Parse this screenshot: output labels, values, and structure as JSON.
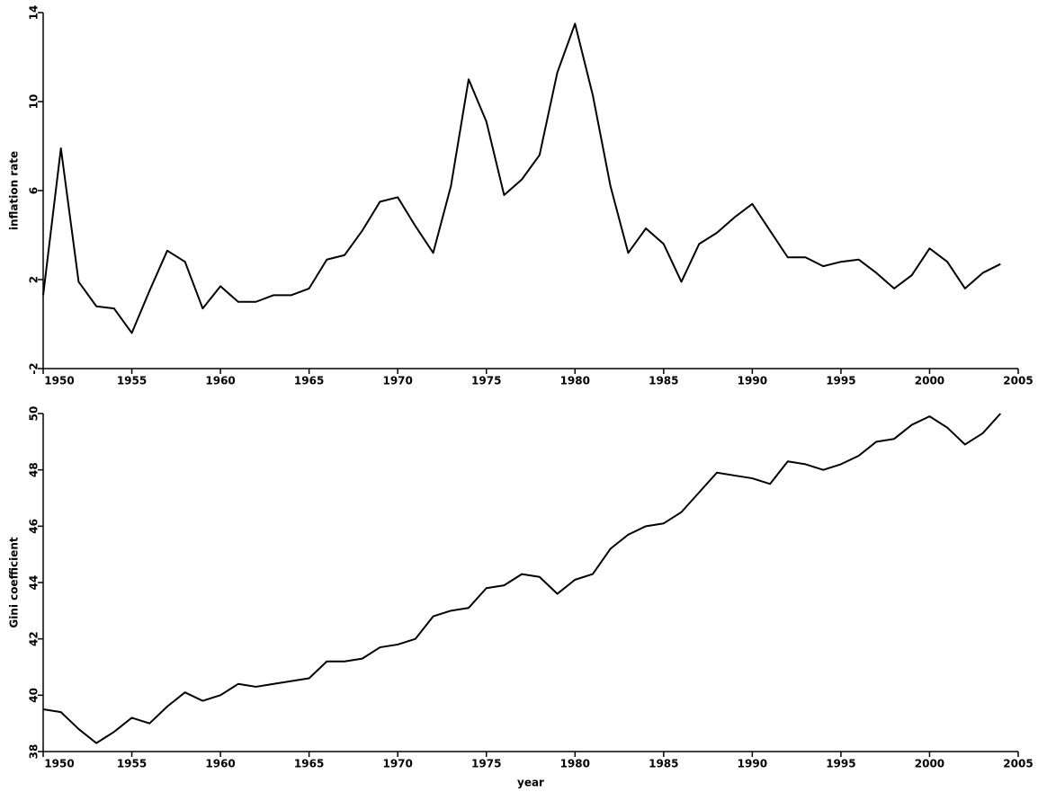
{
  "chart_data": [
    {
      "type": "line",
      "ylabel": "inflation rate",
      "x": [
        1950,
        1951,
        1952,
        1953,
        1954,
        1955,
        1956,
        1957,
        1958,
        1959,
        1960,
        1961,
        1962,
        1963,
        1964,
        1965,
        1966,
        1967,
        1968,
        1969,
        1970,
        1971,
        1972,
        1973,
        1974,
        1975,
        1976,
        1977,
        1978,
        1979,
        1980,
        1981,
        1982,
        1983,
        1984,
        1985,
        1986,
        1987,
        1988,
        1989,
        1990,
        1991,
        1992,
        1993,
        1994,
        1995,
        1996,
        1997,
        1998,
        1999,
        2000,
        2001,
        2002,
        2003,
        2004
      ],
      "series": [
        {
          "color": "#000000",
          "values": [
            1.3,
            7.9,
            1.9,
            0.8,
            0.7,
            -0.4,
            1.5,
            3.3,
            2.8,
            0.7,
            1.7,
            1.0,
            1.0,
            1.3,
            1.3,
            1.6,
            2.9,
            3.1,
            4.2,
            5.5,
            5.7,
            4.4,
            3.2,
            6.2,
            11.0,
            9.1,
            5.8,
            6.5,
            7.6,
            11.3,
            13.5,
            10.3,
            6.2,
            3.2,
            4.3,
            3.6,
            1.9,
            3.6,
            4.1,
            4.8,
            5.4,
            4.2,
            3.0,
            3.0,
            2.6,
            2.8,
            2.9,
            2.3,
            1.6,
            2.2,
            3.4,
            2.8,
            1.6,
            2.3,
            2.7
          ]
        }
      ],
      "xlim": [
        1950,
        2005
      ],
      "xticks": [
        1950,
        1955,
        1960,
        1965,
        1970,
        1975,
        1980,
        1985,
        1990,
        1995,
        2000,
        2005
      ],
      "ylim": [
        -2,
        14
      ],
      "yticks": [
        -2,
        2,
        6,
        10,
        14
      ]
    },
    {
      "type": "line",
      "ylabel": "Gini coefficient",
      "xlabel": "year",
      "x": [
        1950,
        1951,
        1952,
        1953,
        1954,
        1955,
        1956,
        1957,
        1958,
        1959,
        1960,
        1961,
        1962,
        1963,
        1964,
        1965,
        1966,
        1967,
        1968,
        1969,
        1970,
        1971,
        1972,
        1973,
        1974,
        1975,
        1976,
        1977,
        1978,
        1979,
        1980,
        1981,
        1982,
        1983,
        1984,
        1985,
        1986,
        1987,
        1988,
        1989,
        1990,
        1991,
        1992,
        1993,
        1994,
        1995,
        1996,
        1997,
        1998,
        1999,
        2000,
        2001,
        2002,
        2003,
        2004
      ],
      "series": [
        {
          "color": "#000000",
          "values": [
            39.5,
            39.4,
            38.8,
            38.3,
            38.7,
            39.2,
            39.0,
            39.6,
            40.1,
            39.8,
            40.0,
            40.4,
            40.3,
            40.4,
            40.5,
            40.6,
            41.2,
            41.2,
            41.3,
            41.7,
            41.8,
            42.0,
            42.8,
            43.0,
            43.1,
            43.8,
            43.9,
            44.3,
            44.2,
            43.6,
            44.1,
            44.3,
            45.2,
            45.7,
            46.0,
            46.1,
            46.5,
            47.2,
            47.9,
            47.8,
            47.7,
            47.5,
            48.3,
            48.2,
            48.0,
            48.2,
            48.5,
            49.0,
            49.1,
            49.6,
            49.9,
            49.5,
            48.9,
            49.3,
            50.0
          ]
        }
      ],
      "xlim": [
        1950,
        2005
      ],
      "xticks": [
        1950,
        1955,
        1960,
        1965,
        1970,
        1975,
        1980,
        1985,
        1990,
        1995,
        2000,
        2005
      ],
      "ylim": [
        38,
        50
      ],
      "yticks": [
        38,
        40,
        42,
        44,
        46,
        48,
        50
      ]
    }
  ]
}
